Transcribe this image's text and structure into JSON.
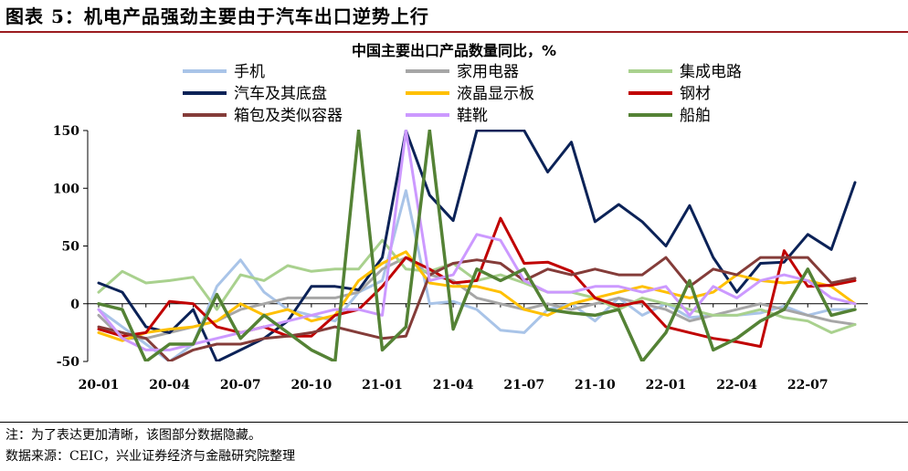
{
  "figure": {
    "title": "图表 5：机电产品强劲主要由于汽车出口逆势上行",
    "note": "注：为了表达更加清晰，该图部分数据隐藏。",
    "source": "数据来源：CEIC，兴业证券经济与金融研究院整理"
  },
  "chart_data": {
    "type": "line",
    "title": "中国主要出口产品数量同比，%",
    "xlabel": "",
    "ylabel": "",
    "ylim": [
      -50,
      150
    ],
    "yticks": [
      -50,
      0,
      50,
      100,
      150
    ],
    "x": [
      "20-01",
      "20-02",
      "20-03",
      "20-04",
      "20-05",
      "20-06",
      "20-07",
      "20-08",
      "20-09",
      "20-10",
      "20-11",
      "20-12",
      "21-01",
      "21-02",
      "21-03",
      "21-04",
      "21-05",
      "21-06",
      "21-07",
      "21-08",
      "21-09",
      "21-10",
      "21-11",
      "21-12",
      "22-01",
      "22-02",
      "22-03",
      "22-04",
      "22-05",
      "22-06",
      "22-07",
      "22-08",
      "22-09"
    ],
    "xtick_labels": [
      "20-01",
      "20-04",
      "20-07",
      "20-10",
      "21-01",
      "21-04",
      "21-07",
      "21-10",
      "22-01",
      "22-04",
      "22-07"
    ],
    "xtick_index": [
      0,
      3,
      6,
      9,
      12,
      15,
      18,
      21,
      24,
      27,
      30
    ],
    "legend_columns": 3,
    "series": [
      {
        "name": "手机",
        "color": "#a9c4e8",
        "width": 3,
        "values": [
          -5,
          -20,
          -35,
          -50,
          -35,
          15,
          38,
          10,
          -5,
          -10,
          -15,
          10,
          20,
          98,
          0,
          2,
          -5,
          -23,
          -25,
          -5,
          0,
          -15,
          5,
          -10,
          0,
          -12,
          -10,
          -10,
          -8,
          -2,
          -10,
          -5,
          -5
        ]
      },
      {
        "name": "家用电器",
        "color": "#a6a6a6",
        "width": 3,
        "values": [
          -10,
          -30,
          -30,
          -25,
          -20,
          -15,
          -5,
          0,
          5,
          5,
          5,
          10,
          30,
          40,
          25,
          20,
          5,
          0,
          -5,
          0,
          -5,
          0,
          5,
          0,
          -5,
          -15,
          -10,
          -5,
          0,
          -5,
          -10,
          -15,
          -18
        ]
      },
      {
        "name": "集成电路",
        "color": "#a9d18e",
        "width": 3,
        "values": [
          10,
          28,
          18,
          20,
          23,
          -5,
          25,
          20,
          33,
          28,
          30,
          30,
          55,
          30,
          28,
          35,
          20,
          25,
          18,
          10,
          10,
          5,
          -5,
          5,
          0,
          -5,
          -10,
          -10,
          -5,
          -12,
          -15,
          -25,
          -18
        ]
      },
      {
        "name": "汽车及其底盘",
        "color": "#0b2257",
        "width": 3,
        "values": [
          18,
          10,
          -20,
          -25,
          -5,
          -50,
          -40,
          -30,
          -15,
          15,
          15,
          12,
          40,
          150,
          94,
          72,
          150,
          150,
          150,
          114,
          140,
          71,
          86,
          71,
          50,
          85,
          40,
          10,
          35,
          36,
          60,
          47,
          105
        ]
      },
      {
        "name": "液晶显示板",
        "color": "#ffc000",
        "width": 3,
        "values": [
          -25,
          -32,
          -25,
          -22,
          -20,
          -15,
          0,
          -10,
          -5,
          -15,
          -10,
          20,
          35,
          45,
          18,
          15,
          15,
          10,
          -5,
          -10,
          0,
          5,
          10,
          15,
          10,
          5,
          10,
          25,
          20,
          18,
          20,
          15,
          0
        ]
      },
      {
        "name": "钢材",
        "color": "#c00000",
        "width": 3,
        "values": [
          -22,
          -28,
          -25,
          2,
          0,
          -20,
          -25,
          -20,
          -28,
          -28,
          -10,
          -5,
          15,
          40,
          30,
          18,
          20,
          74,
          35,
          36,
          28,
          5,
          -2,
          2,
          -20,
          -25,
          -30,
          -33,
          -37,
          46,
          15,
          16,
          20
        ]
      },
      {
        "name": "箱包及类似容器",
        "color": "#843c39",
        "width": 3,
        "values": [
          -20,
          -25,
          -30,
          -50,
          -40,
          -35,
          -35,
          -30,
          -28,
          -25,
          -20,
          -25,
          -30,
          -28,
          25,
          35,
          38,
          35,
          20,
          30,
          25,
          30,
          25,
          25,
          40,
          15,
          30,
          25,
          40,
          40,
          40,
          18,
          22
        ]
      },
      {
        "name": "鞋靴",
        "color": "#cc99ff",
        "width": 3,
        "values": [
          -5,
          -30,
          -40,
          -40,
          -35,
          -30,
          -25,
          -20,
          -15,
          -10,
          -5,
          -5,
          -10,
          150,
          20,
          25,
          60,
          55,
          20,
          10,
          10,
          15,
          15,
          10,
          15,
          -10,
          15,
          5,
          20,
          25,
          20,
          5,
          0
        ]
      },
      {
        "name": "船舶",
        "color": "#548235",
        "width": 3.5,
        "values": [
          0,
          -5,
          -50,
          -35,
          -35,
          8,
          -30,
          -10,
          -25,
          -40,
          -50,
          150,
          -40,
          -20,
          150,
          -22,
          30,
          20,
          30,
          -5,
          -8,
          -10,
          -5,
          -50,
          -25,
          20,
          -40,
          -30,
          -15,
          -5,
          30,
          -10,
          -5
        ]
      }
    ]
  }
}
